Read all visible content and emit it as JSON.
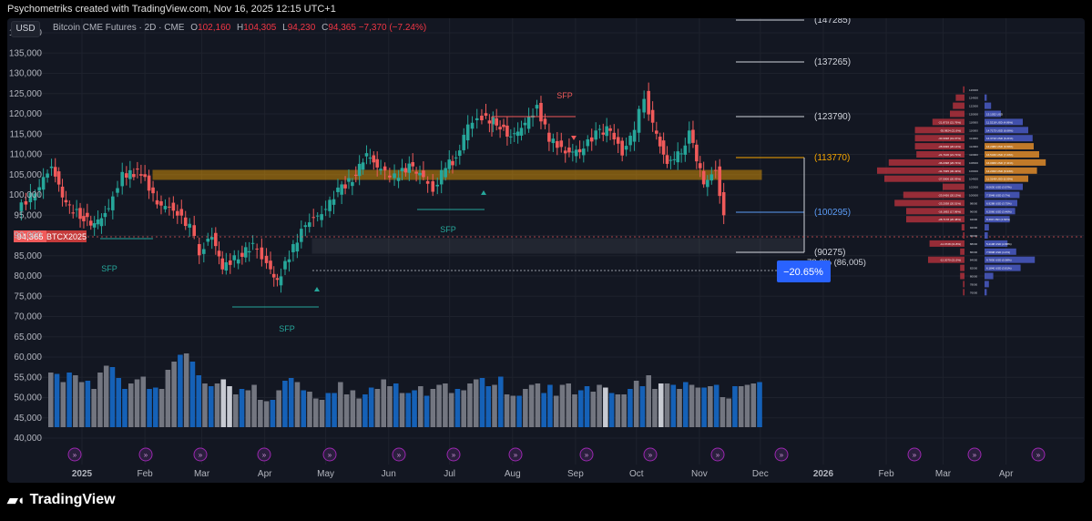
{
  "header": {
    "text": "Psychometriks created with TradingView.com, Nov 16, 2025 12:15 UTC+1"
  },
  "toolbar": {
    "currency": "USD"
  },
  "legend": {
    "symbol": "Bitcoin CME Futures · 2D · CME",
    "open_label": "O",
    "open": "102,160",
    "high_label": "H",
    "high": "104,305",
    "low_label": "L",
    "low": "94,230",
    "close_label": "C",
    "close": "94,365",
    "change": "−7,370 (−7.24%)"
  },
  "footer": {
    "brand": "TradingView"
  },
  "colors": {
    "up": "#26a69a",
    "down": "#f05a5a",
    "volume_blue": "#1565c0",
    "volume_grey": "#787b86",
    "zone": "#f7a600",
    "background": "#131722"
  },
  "chart_data": {
    "type": "candlestick",
    "title": "Bitcoin CME Futures · 2D · CME",
    "ylim": [
      40000,
      145000
    ],
    "y_ticks": [
      40000,
      45000,
      50000,
      55000,
      60000,
      65000,
      70000,
      75000,
      80000,
      85000,
      90000,
      95000,
      100000,
      105000,
      110000,
      115000,
      120000,
      125000,
      130000,
      135000,
      140000
    ],
    "y_tick_labels": [
      "40,000",
      "45,000",
      "50,000",
      "55,000",
      "60,000",
      "65,000",
      "70,000",
      "75,000",
      "80,000",
      "85,000",
      "90,000",
      "95,000",
      "100,000",
      "105,000",
      "110,000",
      "115,000",
      "120,000",
      "125,000",
      "130,000",
      "135,000",
      "140,000"
    ],
    "x_ticks": [
      {
        "label": "2025",
        "date": "2025-01-01"
      },
      {
        "label": "Feb",
        "date": "2025-02-01"
      },
      {
        "label": "Mar",
        "date": "2025-03-01"
      },
      {
        "label": "Apr",
        "date": "2025-04-01"
      },
      {
        "label": "May",
        "date": "2025-05-01"
      },
      {
        "label": "Jun",
        "date": "2025-06-01"
      },
      {
        "label": "Jul",
        "date": "2025-07-01"
      },
      {
        "label": "Aug",
        "date": "2025-08-01"
      },
      {
        "label": "Sep",
        "date": "2025-09-01"
      },
      {
        "label": "Oct",
        "date": "2025-10-01"
      },
      {
        "label": "Nov",
        "date": "2025-11-01"
      },
      {
        "label": "Dec",
        "date": "2025-12-01"
      },
      {
        "label": "2026",
        "date": "2026-01-01"
      },
      {
        "label": "Feb",
        "date": "2026-02-01"
      },
      {
        "label": "Mar",
        "date": "2026-03-01"
      },
      {
        "label": "Apr",
        "date": "2026-04-01"
      }
    ],
    "price_path": [
      [
        "2024-12-01",
        96000
      ],
      [
        "2024-12-10",
        101000
      ],
      [
        "2024-12-18",
        107000
      ],
      [
        "2024-12-25",
        97500
      ],
      [
        "2025-01-01",
        95000
      ],
      [
        "2025-01-08",
        92500
      ],
      [
        "2025-01-15",
        96500
      ],
      [
        "2025-01-22",
        105000
      ],
      [
        "2025-01-31",
        105500
      ],
      [
        "2025-02-08",
        98000
      ],
      [
        "2025-02-16",
        96500
      ],
      [
        "2025-02-24",
        92000
      ],
      [
        "2025-03-01",
        86000
      ],
      [
        "2025-03-07",
        90000
      ],
      [
        "2025-03-12",
        82000
      ],
      [
        "2025-03-20",
        85000
      ],
      [
        "2025-03-27",
        87500
      ],
      [
        "2025-04-03",
        83000
      ],
      [
        "2025-04-08",
        78500
      ],
      [
        "2025-04-14",
        85000
      ],
      [
        "2025-04-22",
        93000
      ],
      [
        "2025-04-30",
        95500
      ],
      [
        "2025-05-08",
        101000
      ],
      [
        "2025-05-15",
        104000
      ],
      [
        "2025-05-22",
        110000
      ],
      [
        "2025-05-29",
        106000
      ],
      [
        "2025-06-05",
        104500
      ],
      [
        "2025-06-12",
        107000
      ],
      [
        "2025-06-19",
        104500
      ],
      [
        "2025-06-24",
        101000
      ],
      [
        "2025-06-30",
        107500
      ],
      [
        "2025-07-05",
        108500
      ],
      [
        "2025-07-11",
        117500
      ],
      [
        "2025-07-18",
        119000
      ],
      [
        "2025-07-25",
        118000
      ],
      [
        "2025-08-01",
        114000
      ],
      [
        "2025-08-08",
        117500
      ],
      [
        "2025-08-14",
        121500
      ],
      [
        "2025-08-20",
        114000
      ],
      [
        "2025-08-28",
        110500
      ],
      [
        "2025-09-04",
        111000
      ],
      [
        "2025-09-12",
        115000
      ],
      [
        "2025-09-19",
        116500
      ],
      [
        "2025-09-25",
        110000
      ],
      [
        "2025-10-01",
        116500
      ],
      [
        "2025-10-06",
        124500
      ],
      [
        "2025-10-10",
        117000
      ],
      [
        "2025-10-17",
        107500
      ],
      [
        "2025-10-24",
        111000
      ],
      [
        "2025-10-28",
        115000
      ],
      [
        "2025-11-04",
        103000
      ],
      [
        "2025-11-10",
        106000
      ],
      [
        "2025-11-14",
        94365
      ]
    ],
    "volume": [
      [
        40,
        39,
        33,
        40,
        38,
        33,
        34,
        28,
        40,
        45,
        44,
        36,
        28,
        32,
        35,
        37,
        28,
        29,
        28,
        42,
        48,
        53,
        54,
        48,
        38,
        32,
        30,
        32,
        35,
        30
      ],
      [
        24,
        28,
        27,
        31,
        20,
        19,
        20,
        27,
        34,
        36,
        33,
        27,
        26,
        21,
        20,
        25,
        25,
        33,
        24,
        27,
        21,
        24,
        29,
        28,
        35,
        30,
        32,
        25,
        25,
        27
      ],
      [
        30,
        23,
        28,
        31,
        32,
        25,
        28,
        27,
        32,
        35,
        36,
        30,
        31,
        37,
        24,
        23,
        23,
        28,
        31,
        32,
        25,
        31,
        23,
        31,
        32,
        24,
        27,
        30,
        26,
        31
      ],
      [
        29,
        25,
        24,
        24,
        28,
        34,
        30,
        38,
        28,
        32,
        32,
        31,
        28,
        33,
        31,
        29,
        29,
        30,
        31,
        22,
        21,
        30,
        30,
        31,
        32,
        33
      ]
    ],
    "annotations": {
      "sfp_labels": [
        "SFP",
        "SFP",
        "SFP",
        "SFP"
      ],
      "fib_levels": [
        "(147285)",
        "(137265)",
        "(123790)",
        "(113770)",
        "(100295)",
        "(90275)"
      ],
      "fib_partial": "78.6% (86,005)",
      "measure": "−20.65%",
      "last_price": "94,365",
      "symbol_tag": "BTCX2025"
    },
    "volume_profile": [
      {
        "price": 126000,
        "bid": "",
        "ask": "",
        "vb": 1,
        "va": 0
      },
      {
        "price": 124000,
        "bid": "",
        "ask": "",
        "vb": 6,
        "va": 2
      },
      {
        "price": 122000,
        "bid": "",
        "ask": "",
        "vb": 8,
        "va": 6
      },
      {
        "price": 120000,
        "bid": "",
        "ask": "13.1032 USD",
        "vb": 10,
        "va": 15
      },
      {
        "price": 118000,
        "bid": "-21.8719 (21.76%)",
        "ask": "11.5218 USD (4.86%)",
        "vb": 22,
        "va": 35
      },
      {
        "price": 116000,
        "bid": "-35.9824 (21.6%)",
        "ask": "14.7173 USD (6.66%)",
        "vb": 34,
        "va": 40
      },
      {
        "price": 114000,
        "bid": "-30.3038 (19.07%)",
        "ask": "14.3710 USD (6.21%)",
        "vb": 34,
        "va": 44
      },
      {
        "price": 112000,
        "bid": "-28.6936 (20.14%)",
        "ask": "14.2080 USD (6.59%)",
        "vb": 34,
        "va": 45
      },
      {
        "price": 110000,
        "bid": "-21.7106 (21.71%)",
        "ask": "16.5346 USD (7.23%)",
        "vb": 33,
        "va": 50
      },
      {
        "price": 108000,
        "bid": "-36.2398 (26.74%)",
        "ask": "16.0969 USD (7.41%)",
        "vb": 52,
        "va": 56
      },
      {
        "price": 106000,
        "bid": "-41.7035 (30.43%)",
        "ask": "14.2033 USD (6.94%)",
        "vb": 60,
        "va": 48
      },
      {
        "price": 104000,
        "bid": "-27.5006 (20.93%)",
        "ask": "11.3148 USD (5.59%)",
        "vb": 55,
        "va": 40
      },
      {
        "price": 102000,
        "bid": "",
        "ask": "8.0630 USD (3.97%)",
        "vb": 15,
        "va": 35
      },
      {
        "price": 100000,
        "bid": "-23.0426 (20.13%)",
        "ask": "7.3948 USD (3.7%)",
        "vb": 42,
        "va": 32
      },
      {
        "price": 98000,
        "bid": "-23.2038 (20.51%)",
        "ask": "6.9288 USD (3.75%)",
        "vb": 48,
        "va": 30
      },
      {
        "price": 96000,
        "bid": "-16.1692 (17.96%)",
        "ask": "6.2060 USD (3.46%)",
        "vb": 40,
        "va": 28
      },
      {
        "price": 94000,
        "bid": "-28.7178 (20.48%)",
        "ask": "8.490 USD (4.63%)",
        "vb": 40,
        "va": 23
      },
      {
        "price": 92000,
        "bid": "",
        "ask": "",
        "vb": 2,
        "va": 4
      },
      {
        "price": 90000,
        "bid": "",
        "ask": "",
        "vb": 1,
        "va": 3
      },
      {
        "price": 88000,
        "bid": "-11.0728 (21.8%)",
        "ask": "5.2198 USD (2.88%)",
        "vb": 24,
        "va": 21
      },
      {
        "price": 86000,
        "bid": "",
        "ask": "7.5808 USD (4.4%)",
        "vb": 3,
        "va": 29
      },
      {
        "price": 84000,
        "bid": "-12.2070 (21.5%)",
        "ask": "9.7830 USD (5.98%)",
        "vb": 25,
        "va": 46
      },
      {
        "price": 82000,
        "bid": "",
        "ask": "6.1840 USD (3.81%)",
        "vb": 3,
        "va": 33
      },
      {
        "price": 80000,
        "bid": "",
        "ask": "",
        "vb": 3,
        "va": 8
      },
      {
        "price": 78000,
        "bid": "",
        "ask": "",
        "vb": 1,
        "va": 4
      },
      {
        "price": 76000,
        "bid": "",
        "ask": "",
        "vb": 1,
        "va": 2
      }
    ]
  }
}
